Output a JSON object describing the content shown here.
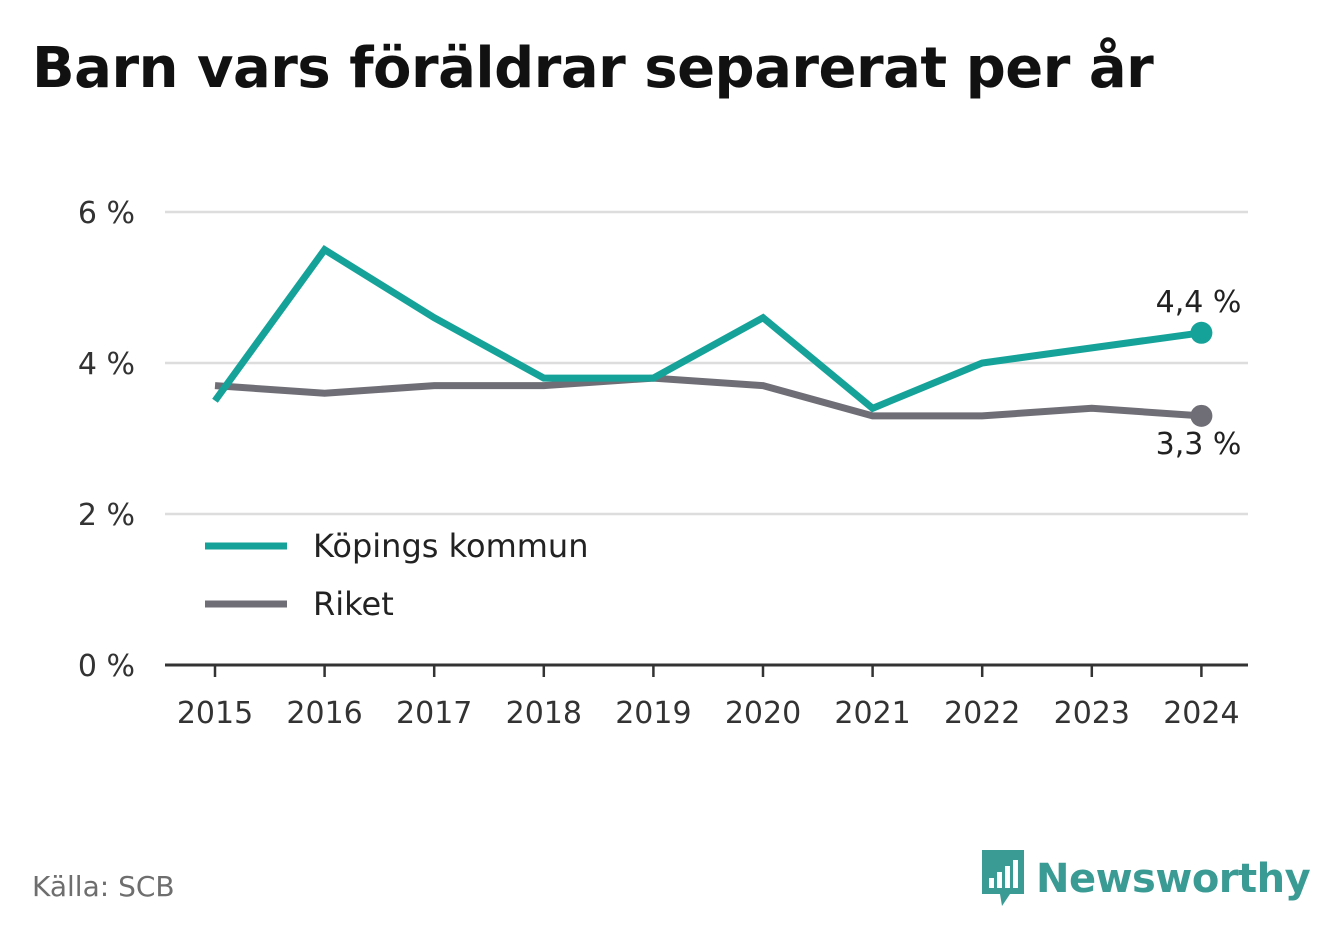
{
  "title": "Barn vars föräldrar separerat per år",
  "source": "Källa: SCB",
  "brand": {
    "name": "Newsworthy",
    "icon": "newsworthy-logo-icon",
    "color": "#3a9a94"
  },
  "chart_data": {
    "type": "line",
    "title": "Barn vars föräldrar separerat per år",
    "xlabel": "",
    "ylabel": "",
    "x": [
      "2015",
      "2016",
      "2017",
      "2018",
      "2019",
      "2020",
      "2021",
      "2022",
      "2023",
      "2024"
    ],
    "ylim": [
      0,
      6
    ],
    "yticks": [
      0,
      2,
      4,
      6
    ],
    "ytick_labels": [
      "0 %",
      "2 %",
      "4 %",
      "6 %"
    ],
    "grid": true,
    "legend_position": "bottom-left",
    "series": [
      {
        "name": "Köpings kommun",
        "color": "#15a399",
        "values": [
          3.5,
          5.5,
          4.6,
          3.8,
          3.8,
          4.6,
          3.4,
          4.0,
          4.2,
          4.4
        ],
        "end_label": "4,4 %"
      },
      {
        "name": "Riket",
        "color": "#6f6e76",
        "values": [
          3.7,
          3.6,
          3.7,
          3.7,
          3.8,
          3.7,
          3.3,
          3.3,
          3.4,
          3.3
        ],
        "end_label": "3,3 %"
      }
    ]
  }
}
